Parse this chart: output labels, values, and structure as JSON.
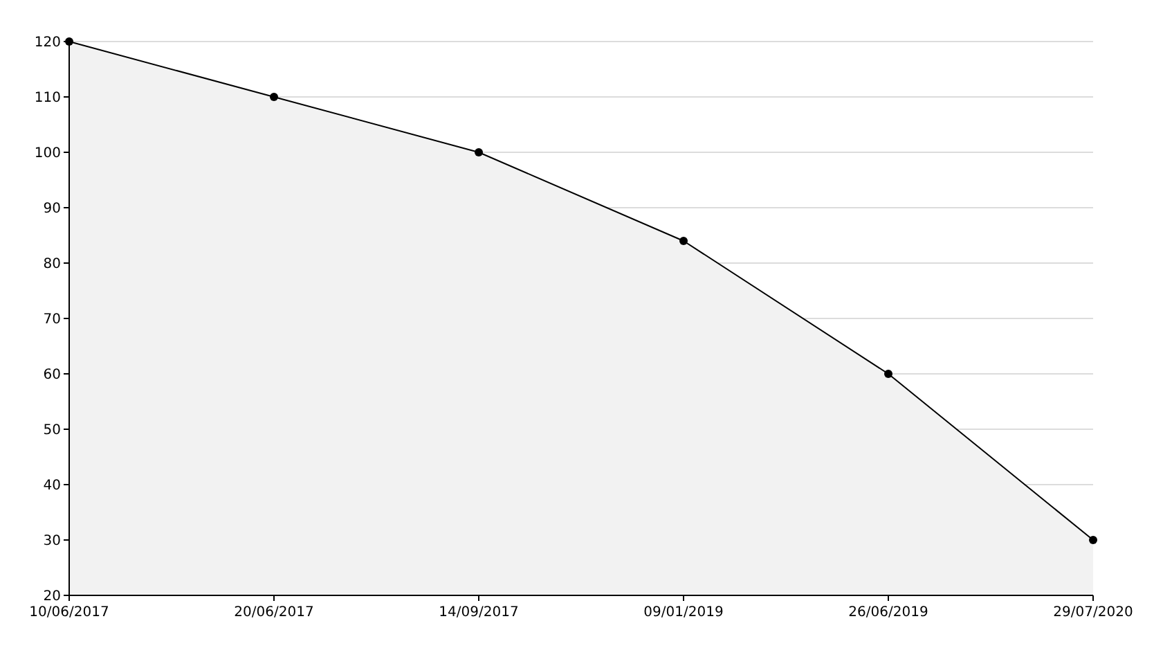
{
  "chart_data": {
    "type": "area",
    "categories": [
      "10/06/2017",
      "20/06/2017",
      "14/09/2017",
      "09/01/2019",
      "26/06/2019",
      "29/07/2020"
    ],
    "series": [
      {
        "color": "#f2f2f2",
        "values": [
          120,
          110,
          100,
          84,
          60,
          30
        ]
      }
    ],
    "ylim": [
      20,
      120
    ],
    "yticks": [
      20,
      30,
      40,
      50,
      60,
      70,
      80,
      90,
      100,
      110,
      120
    ],
    "grid": "y",
    "marker": "circle",
    "line_style": "solid"
  }
}
